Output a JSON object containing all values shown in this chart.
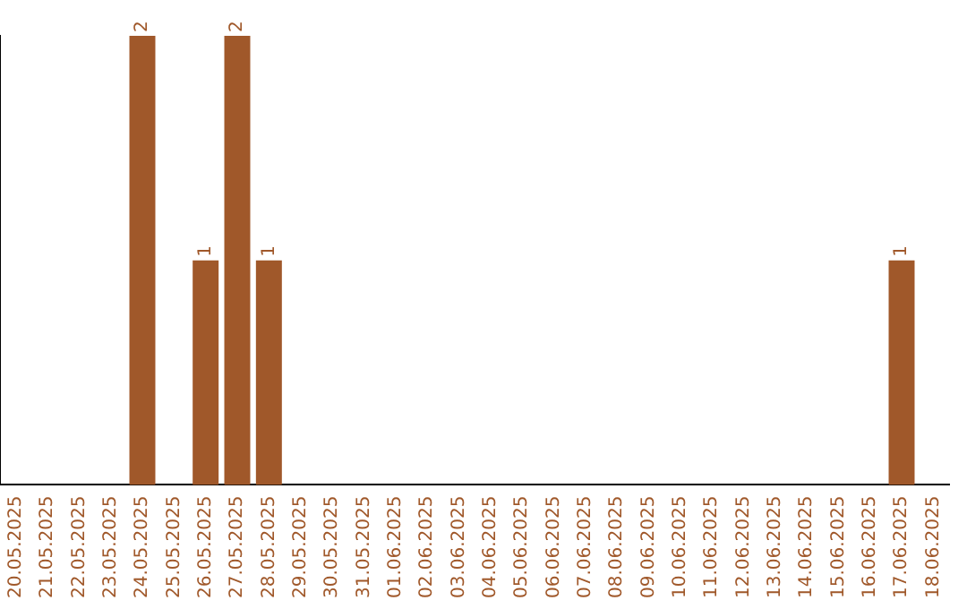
{
  "chart_data": {
    "type": "bar",
    "categories": [
      "20.05.2025",
      "21.05.2025",
      "22.05.2025",
      "23.05.2025",
      "24.05.2025",
      "25.05.2025",
      "26.05.2025",
      "27.05.2025",
      "28.05.2025",
      "29.05.2025",
      "30.05.2025",
      "31.05.2025",
      "01.06.2025",
      "02.06.2025",
      "03.06.2025",
      "04.06.2025",
      "05.06.2025",
      "06.06.2025",
      "07.06.2025",
      "08.06.2025",
      "09.06.2025",
      "10.06.2025",
      "11.06.2025",
      "12.06.2025",
      "13.06.2025",
      "14.06.2025",
      "15.06.2025",
      "16.06.2025",
      "17.06.2025",
      "18.06.2025"
    ],
    "values": [
      0,
      0,
      0,
      0,
      2,
      0,
      1,
      2,
      1,
      0,
      0,
      0,
      0,
      0,
      0,
      0,
      0,
      0,
      0,
      0,
      0,
      0,
      0,
      0,
      0,
      0,
      0,
      0,
      1,
      0
    ],
    "value_labels": [
      null,
      null,
      null,
      null,
      "2",
      null,
      "1",
      "2",
      "1",
      null,
      null,
      null,
      null,
      null,
      null,
      null,
      null,
      null,
      null,
      null,
      null,
      null,
      null,
      null,
      null,
      null,
      null,
      null,
      "1",
      null
    ],
    "color": "#a0582a",
    "ylim": [
      0,
      2
    ],
    "tick_labels": "x",
    "grid": false,
    "legend": false
  }
}
